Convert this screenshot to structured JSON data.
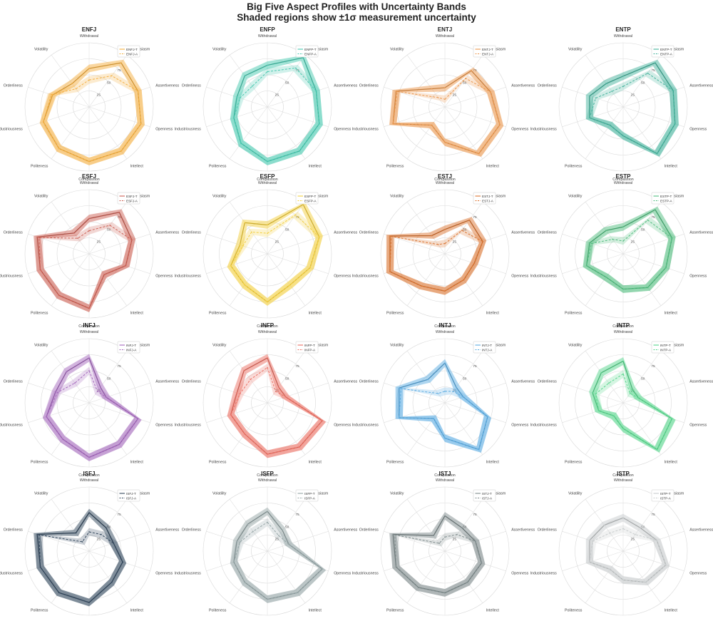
{
  "figure": {
    "title_line1": "Big Five Aspect Profiles with Uncertainty Bands",
    "title_line2": "Shaded regions show ±1σ measurement uncertainty"
  },
  "chart_data": {
    "type": "radar",
    "axes": [
      "Withdrawal",
      "Enthusiasm",
      "Assertiveness",
      "Openness",
      "Intellect",
      "Compassion",
      "Politeness",
      "Industriousness",
      "Orderliness",
      "Volatility"
    ],
    "rticks": [
      25,
      50,
      75
    ],
    "rlim": [
      0,
      100
    ],
    "grid": true,
    "legend_placement": "top-right",
    "uncertainty": "±1σ",
    "panels": [
      {
        "title": "ENFJ",
        "color": "#f5b041",
        "series": [
          {
            "name": "ENFJ-T",
            "values": [
              60,
              85,
              80,
              85,
              85,
              85,
              80,
              75,
              60,
              45
            ]
          },
          {
            "name": "ENFJ-A",
            "values": [
              42,
              60,
              80,
              85,
              85,
              85,
              80,
              75,
              62,
              35
            ]
          }
        ]
      },
      {
        "title": "ENFP",
        "color": "#48c9b0",
        "series": [
          {
            "name": "ENFP-T",
            "values": [
              65,
              95,
              80,
              85,
              85,
              85,
              70,
              55,
              50,
              60
            ]
          },
          {
            "name": "ENFP-A",
            "values": [
              55,
              75,
              80,
              85,
              85,
              85,
              70,
              55,
              45,
              40
            ]
          }
        ]
      },
      {
        "title": "ENTJ",
        "color": "#eb984e",
        "series": [
          {
            "name": "ENTJ-T",
            "values": [
              30,
              70,
              75,
              90,
              90,
              55,
              35,
              85,
              80,
              35
            ]
          },
          {
            "name": "ENTJ-A",
            "values": [
              12,
              55,
              75,
              90,
              90,
              55,
              35,
              85,
              78,
              18
            ]
          }
        ]
      },
      {
        "title": "ENTP",
        "color": "#45b39d",
        "series": [
          {
            "name": "ENTP-T",
            "values": [
              48,
              85,
              82,
              85,
              90,
              45,
              35,
              55,
              55,
              45
            ]
          },
          {
            "name": "ENTP-A",
            "values": [
              32,
              65,
              82,
              85,
              90,
              45,
              35,
              55,
              45,
              30
            ]
          }
        ]
      },
      {
        "title": "ESFJ",
        "color": "#cd6155",
        "series": [
          {
            "name": "ESFJ-T",
            "values": [
              55,
              80,
              70,
              60,
              40,
              85,
              80,
              80,
              85,
              40
            ]
          },
          {
            "name": "ESFJ-A",
            "values": [
              36,
              55,
              70,
              60,
              40,
              85,
              80,
              80,
              82,
              30
            ]
          }
        ]
      },
      {
        "title": "ESFP",
        "color": "#f4d03f",
        "series": [
          {
            "name": "ESFP-T",
            "values": [
              45,
              95,
              85,
              70,
              60,
              75,
              60,
              60,
              45,
              60
            ]
          },
          {
            "name": "ESFP-A",
            "values": [
              32,
              75,
              85,
              70,
              60,
              75,
              60,
              60,
              40,
              42
            ]
          }
        ]
      },
      {
        "title": "ESTJ",
        "color": "#dc7633",
        "series": [
          {
            "name": "ESTJ-T",
            "values": [
              38,
              65,
              62,
              48,
              50,
              58,
              62,
              90,
              90,
              35
            ]
          },
          {
            "name": "ESTJ-A",
            "values": [
              16,
              45,
              62,
              48,
              50,
              58,
              62,
              90,
              88,
              18
            ]
          }
        ]
      },
      {
        "title": "ESTP",
        "color": "#52be80",
        "series": [
          {
            "name": "ESTP-T",
            "values": [
              42,
              85,
              80,
              70,
              65,
              55,
              45,
              60,
              55,
              45
            ]
          },
          {
            "name": "ESTP-A",
            "values": [
              20,
              65,
              80,
              70,
              65,
              55,
              45,
              60,
              52,
              28
            ]
          }
        ]
      },
      {
        "title": "INFJ",
        "color": "#a569bd",
        "series": [
          {
            "name": "INFJ-T",
            "values": [
              70,
              30,
              28,
              80,
              80,
              85,
              70,
              70,
              55,
              60
            ]
          },
          {
            "name": "INFJ-A",
            "values": [
              50,
              22,
              28,
              80,
              80,
              85,
              70,
              70,
              52,
              38
            ]
          }
        ]
      },
      {
        "title": "INFP",
        "color": "#ec7063",
        "series": [
          {
            "name": "INFP-T",
            "values": [
              70,
              30,
              30,
              90,
              85,
              80,
              60,
              60,
              50,
              62
            ]
          },
          {
            "name": "INFP-A",
            "values": [
              55,
              22,
              30,
              90,
              85,
              80,
              60,
              60,
              45,
              45
            ]
          }
        ]
      },
      {
        "title": "INTJ",
        "color": "#5dade2",
        "series": [
          {
            "name": "INTJ-T",
            "values": [
              62,
              30,
              30,
              70,
              90,
              55,
              30,
              75,
              75,
              45
            ]
          },
          {
            "name": "INTJ-A",
            "values": [
              18,
              22,
              30,
              70,
              90,
              55,
              30,
              75,
              72,
              18
            ]
          }
        ]
      },
      {
        "title": "INTP",
        "color": "#58d68d",
        "series": [
          {
            "name": "INTP-T",
            "values": [
              65,
              25,
              25,
              80,
              90,
              40,
              25,
              40,
              50,
              58
            ]
          },
          {
            "name": "INTP-A",
            "values": [
              45,
              18,
              25,
              80,
              90,
              40,
              25,
              40,
              45,
              38
            ]
          }
        ]
      },
      {
        "title": "ISFJ",
        "color": "#34495e",
        "series": [
          {
            "name": "ISFJ-T",
            "values": [
              60,
              45,
              40,
              55,
              60,
              80,
              80,
              80,
              85,
              35
            ]
          },
          {
            "name": "ISFJ-A",
            "values": [
              30,
              32,
              40,
              55,
              60,
              80,
              80,
              80,
              82,
              18
            ]
          }
        ]
      },
      {
        "title": "ISFP",
        "color": "#95a5a6",
        "series": [
          {
            "name": "ISFP-T",
            "values": [
              62,
              40,
              35,
              90,
              80,
              75,
              60,
              55,
              50,
              52
            ]
          },
          {
            "name": "ISFP-A",
            "values": [
              45,
              30,
              35,
              90,
              80,
              75,
              60,
              55,
              45,
              38
            ]
          }
        ]
      },
      {
        "title": "ISTJ",
        "color": "#7f8c8d",
        "series": [
          {
            "name": "ISTJ-T",
            "values": [
              55,
              45,
              50,
              60,
              60,
              65,
              70,
              80,
              85,
              30
            ]
          },
          {
            "name": "ISTJ-A",
            "values": [
              22,
              32,
              50,
              60,
              60,
              65,
              70,
              80,
              82,
              15
            ]
          }
        ]
      },
      {
        "title": "ISTP",
        "color": "#c8cccd",
        "series": [
          {
            "name": "ISTP-T",
            "values": [
              52,
              45,
              55,
              70,
              60,
              45,
              35,
              55,
              55,
              50
            ]
          },
          {
            "name": "ISTP-A",
            "values": [
              35,
              32,
              55,
              70,
              60,
              45,
              35,
              55,
              50,
              35
            ]
          }
        ]
      }
    ]
  }
}
